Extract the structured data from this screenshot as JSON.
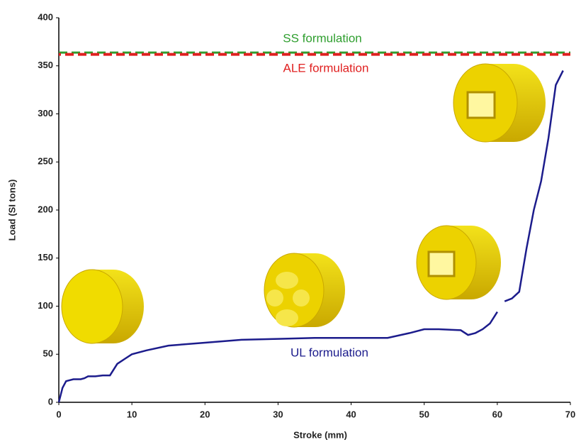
{
  "chart_data": {
    "type": "line",
    "xlabel": "Stroke (mm)",
    "ylabel": "Load (SI tons)",
    "xlim": [
      0,
      70
    ],
    "ylim": [
      0,
      400
    ],
    "xticks": [
      0,
      10,
      20,
      30,
      40,
      50,
      60,
      70
    ],
    "yticks": [
      0,
      50,
      100,
      150,
      200,
      250,
      300,
      350,
      400
    ],
    "grid": false,
    "series": [
      {
        "name": "SS formulation",
        "color": "#2e9e2e",
        "x": [
          0,
          70
        ],
        "values": [
          363,
          363
        ]
      },
      {
        "name": "ALE formulation",
        "color": "#e02020",
        "x": [
          0,
          70
        ],
        "values": [
          363,
          363
        ]
      },
      {
        "name": "UL formulation",
        "color": "#1c1c8c",
        "x": [
          0,
          0.5,
          1,
          2,
          3,
          3.5,
          4,
          5,
          6,
          7,
          8,
          9,
          10,
          12,
          15,
          20,
          25,
          30,
          35,
          40,
          45,
          48,
          50,
          52,
          55,
          56,
          57,
          58,
          59,
          60,
          60.5,
          61,
          62,
          63,
          64,
          65,
          66,
          67,
          68,
          69
        ],
        "values": [
          0,
          15,
          22,
          24,
          24,
          25,
          27,
          27,
          28,
          28,
          40,
          45,
          50,
          54,
          59,
          62,
          65,
          66,
          67,
          67,
          67,
          72,
          76,
          76,
          75,
          70,
          72,
          76,
          82,
          94,
          null,
          105,
          108,
          115,
          160,
          200,
          230,
          275,
          330,
          345
        ]
      }
    ]
  }
}
